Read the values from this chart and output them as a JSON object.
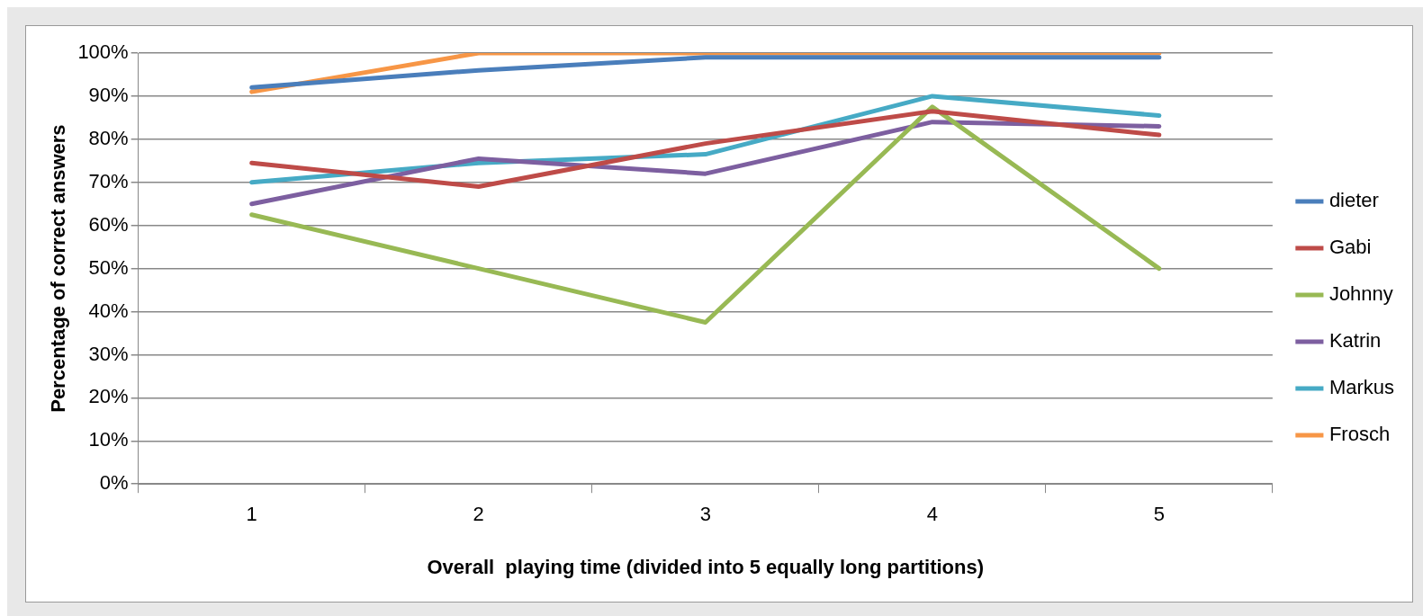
{
  "chart_data": {
    "type": "line",
    "xlabel": "Overall  playing time (divided into 5 equally long partitions)",
    "ylabel": "Percentage of correct answers",
    "categories": [
      "1",
      "2",
      "3",
      "4",
      "5"
    ],
    "series": [
      {
        "name": "dieter",
        "color": "#4a7ebb",
        "values": [
          92,
          96,
          99,
          99,
          99
        ]
      },
      {
        "name": "Gabi",
        "color": "#be4b48",
        "values": [
          74.5,
          69,
          79,
          86.5,
          81
        ]
      },
      {
        "name": "Johnny",
        "color": "#98b954",
        "values": [
          62.5,
          50,
          37.5,
          87.5,
          50
        ]
      },
      {
        "name": "Katrin",
        "color": "#7d5fa0",
        "values": [
          65,
          75.5,
          72,
          84,
          83
        ]
      },
      {
        "name": "Markus",
        "color": "#46aac5",
        "values": [
          70,
          74.5,
          76.5,
          90,
          85.5
        ]
      },
      {
        "name": "Frosch",
        "color": "#f79646",
        "values": [
          91,
          100,
          100,
          100,
          100
        ]
      }
    ],
    "ylim": [
      0,
      100
    ],
    "yticks": [
      {
        "value": 0,
        "label": "0%"
      },
      {
        "value": 10,
        "label": "10%"
      },
      {
        "value": 20,
        "label": "20%"
      },
      {
        "value": 30,
        "label": "30%"
      },
      {
        "value": 40,
        "label": "40%"
      },
      {
        "value": 50,
        "label": "50%"
      },
      {
        "value": 60,
        "label": "60%"
      },
      {
        "value": 70,
        "label": "70%"
      },
      {
        "value": 80,
        "label": "80%"
      },
      {
        "value": 90,
        "label": "90%"
      },
      {
        "value": 100,
        "label": "100%"
      }
    ],
    "grid": "y",
    "legend": "right",
    "marker": "none",
    "line_style": "solid"
  }
}
